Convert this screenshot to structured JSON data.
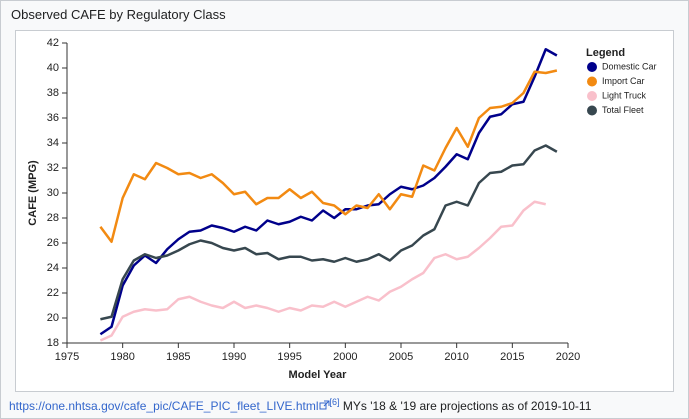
{
  "chart_data": {
    "type": "line",
    "title": "Observed CAFE by Regulatory Class",
    "x_label": "Model Year",
    "y_label": "CAFE (MPG)",
    "legend_title": "Legend",
    "legend": "top-right",
    "grid": false,
    "x": [
      1978,
      1979,
      1980,
      1981,
      1982,
      1983,
      1984,
      1985,
      1986,
      1987,
      1988,
      1989,
      1990,
      1991,
      1992,
      1993,
      1994,
      1995,
      1996,
      1997,
      1998,
      1999,
      2000,
      2001,
      2002,
      2003,
      2004,
      2005,
      2006,
      2007,
      2008,
      2009,
      2010,
      2011,
      2012,
      2013,
      2014,
      2015,
      2016,
      2017,
      2018,
      2019
    ],
    "xlim": [
      1975,
      2020
    ],
    "xticks": [
      1975,
      1980,
      1985,
      1990,
      1995,
      2000,
      2005,
      2010,
      2015,
      2020
    ],
    "ylim": [
      18,
      42
    ],
    "yticks": [
      18,
      20,
      22,
      24,
      26,
      28,
      30,
      32,
      34,
      36,
      38,
      40,
      42
    ],
    "series": [
      {
        "name": "Domestic Car",
        "color": "#00008b",
        "values": [
          18.7,
          19.3,
          22.6,
          24.2,
          25.0,
          24.4,
          25.5,
          26.3,
          26.9,
          27.0,
          27.4,
          27.2,
          26.9,
          27.3,
          27.0,
          27.8,
          27.5,
          27.7,
          28.1,
          27.8,
          28.6,
          28.0,
          28.7,
          28.7,
          29.0,
          29.1,
          29.9,
          30.5,
          30.3,
          30.6,
          31.2,
          32.1,
          33.1,
          32.7,
          34.8,
          36.1,
          36.3,
          37.1,
          37.3,
          39.3,
          41.5,
          41.0
        ]
      },
      {
        "name": "Import Car",
        "color": "#f28a12",
        "values": [
          27.3,
          26.1,
          29.6,
          31.5,
          31.1,
          32.4,
          32.0,
          31.5,
          31.6,
          31.2,
          31.5,
          30.8,
          29.9,
          30.1,
          29.1,
          29.6,
          29.6,
          30.3,
          29.6,
          30.1,
          29.2,
          29.0,
          28.3,
          29.0,
          28.8,
          29.9,
          28.7,
          29.9,
          29.7,
          32.2,
          31.8,
          33.6,
          35.2,
          33.7,
          36.0,
          36.8,
          36.9,
          37.2,
          38.0,
          39.7,
          39.6,
          39.8
        ]
      },
      {
        "name": "Light Truck",
        "color": "#f9c0cb",
        "values": [
          18.2,
          18.6,
          20.1,
          20.5,
          20.7,
          20.6,
          20.7,
          21.5,
          21.7,
          21.3,
          21.0,
          20.8,
          21.3,
          20.8,
          21.0,
          20.8,
          20.5,
          20.8,
          20.6,
          21.0,
          20.9,
          21.3,
          20.9,
          21.3,
          21.7,
          21.4,
          22.1,
          22.5,
          23.1,
          23.6,
          24.8,
          25.1,
          24.7,
          24.9,
          25.6,
          26.4,
          27.3,
          27.4,
          28.6,
          29.3,
          29.1,
          null
        ]
      },
      {
        "name": "Total Fleet",
        "color": "#37474f",
        "values": [
          19.9,
          20.1,
          23.1,
          24.6,
          25.1,
          24.8,
          25.0,
          25.4,
          25.9,
          26.2,
          26.0,
          25.6,
          25.4,
          25.6,
          25.1,
          25.2,
          24.7,
          24.9,
          24.9,
          24.6,
          24.7,
          24.5,
          24.8,
          24.5,
          24.7,
          25.1,
          24.6,
          25.4,
          25.8,
          26.6,
          27.1,
          29.0,
          29.3,
          29.0,
          30.8,
          31.6,
          31.7,
          32.2,
          32.3,
          33.4,
          33.8,
          33.3
        ]
      }
    ]
  },
  "caption": {
    "link": "https://one.nhtsa.gov/cafe_pic/CAFE_PIC_fleet_LIVE.html",
    "ref": "[6]",
    "text": "MYs '18 & '19 are projections as of 2019-10-11"
  }
}
